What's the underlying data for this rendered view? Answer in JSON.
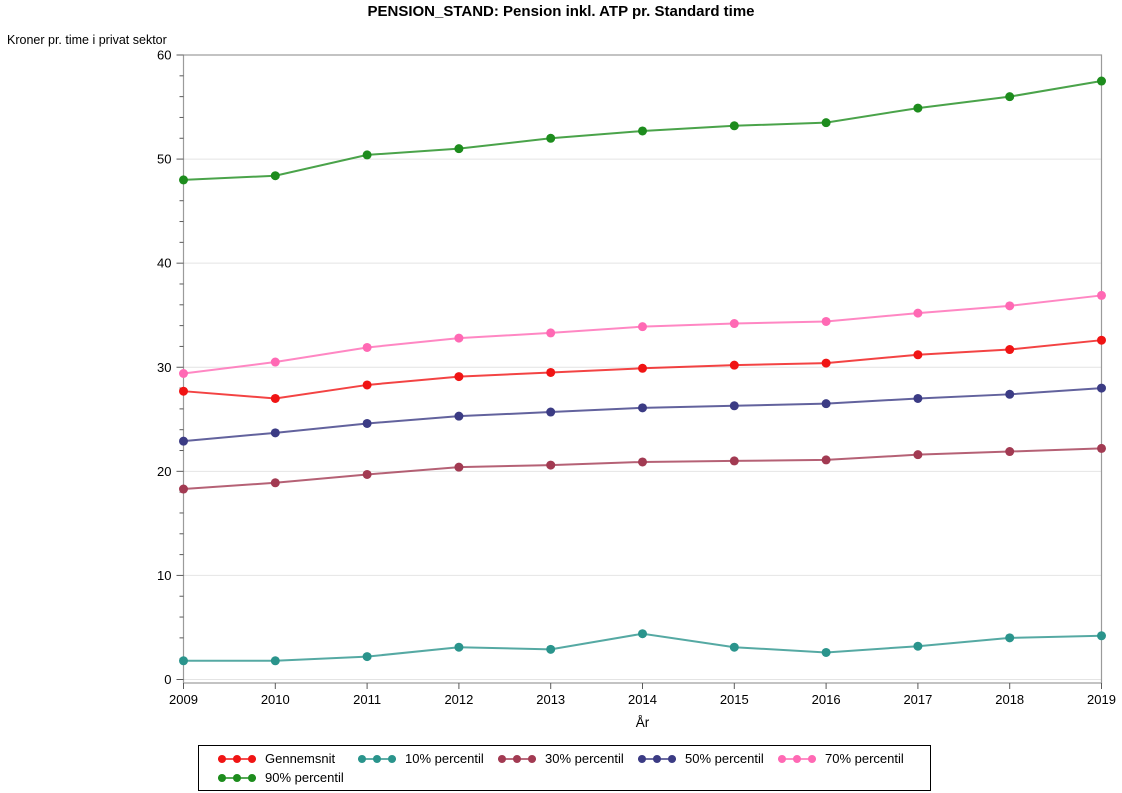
{
  "chart_data": {
    "type": "line",
    "title": "PENSION_STAND: Pension inkl. ATP pr. Standard time",
    "ylabel": "Kroner pr. time i privat sektor",
    "xlabel": "År",
    "x": [
      2009,
      2010,
      2011,
      2012,
      2013,
      2014,
      2015,
      2016,
      2017,
      2018,
      2019
    ],
    "ylim": [
      0,
      60
    ],
    "yticks": [
      0,
      10,
      20,
      30,
      40,
      50,
      60
    ],
    "y_minor_tick_step": 2,
    "grid": "horizontal-major",
    "legend_position": "bottom-boxed",
    "series": [
      {
        "name": "Gennemsnit",
        "color": "#f01414",
        "values": [
          27.7,
          27.0,
          28.3,
          29.1,
          29.5,
          29.9,
          30.2,
          30.4,
          31.2,
          31.7,
          32.6
        ]
      },
      {
        "name": "10% percentil",
        "color": "#2a948c",
        "values": [
          1.8,
          1.8,
          2.2,
          3.1,
          2.9,
          4.4,
          3.1,
          2.6,
          3.2,
          4.0,
          4.2
        ]
      },
      {
        "name": "30% percentil",
        "color": "#a23a52",
        "values": [
          18.3,
          18.9,
          19.7,
          20.4,
          20.6,
          20.9,
          21.0,
          21.1,
          21.6,
          21.9,
          22.2
        ]
      },
      {
        "name": "50% percentil",
        "color": "#3b3b84",
        "values": [
          22.9,
          23.7,
          24.6,
          25.3,
          25.7,
          26.1,
          26.3,
          26.5,
          27.0,
          27.4,
          28.0
        ]
      },
      {
        "name": "70% percentil",
        "color": "#ff69b4",
        "values": [
          29.4,
          30.5,
          31.9,
          32.8,
          33.3,
          33.9,
          34.2,
          34.4,
          35.2,
          35.9,
          36.9
        ]
      },
      {
        "name": "90% percentil",
        "color": "#1d8c1d",
        "values": [
          48.0,
          48.4,
          50.4,
          51.0,
          52.0,
          52.7,
          53.2,
          53.5,
          54.9,
          56.0,
          57.5
        ]
      }
    ],
    "colors": {
      "grid": "#e4e4e4",
      "frame": "#9b9b9b",
      "tick": "#5a5a5a",
      "text": "#000000"
    }
  }
}
